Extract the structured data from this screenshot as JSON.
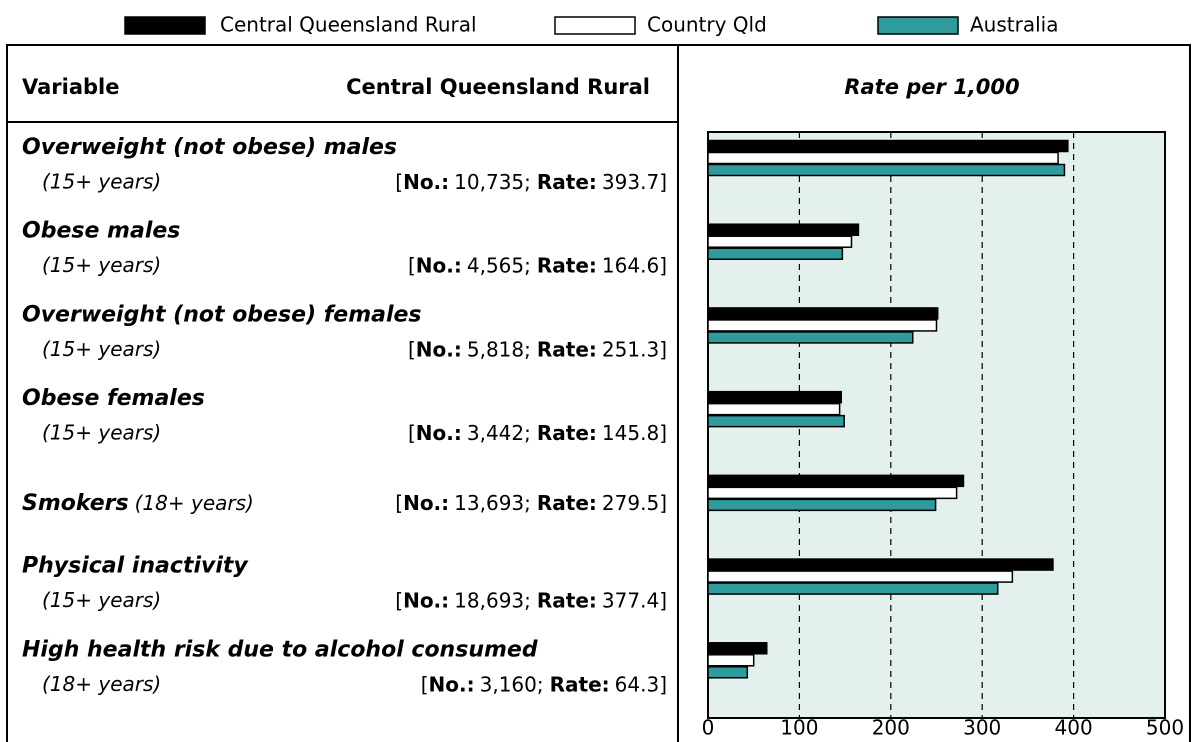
{
  "chart_data": {
    "type": "bar",
    "orientation": "horizontal",
    "table_header": "Variable",
    "axis_title": "Rate per 1,000",
    "categories": [
      "Overweight (not obese) males",
      "Obese males",
      "Overweight (not obese) females",
      "Obese females",
      "Smokers",
      "Physical inactivity",
      "High health risk due to alcohol consumed"
    ],
    "category_notes": [
      "(15+ years)",
      "(15+ years)",
      "(15+ years)",
      "(15+ years)",
      "(18+ years)",
      "(15+ years)",
      "(18+ years)"
    ],
    "number_label": "No.:",
    "rate_label": "Rate:",
    "punctuation": {
      "open": "[",
      "separator": ";",
      "close": "]"
    },
    "counts": [
      "10,735",
      "4,565",
      "5,818",
      "3,442",
      "13,693",
      "18,693",
      "3,160"
    ],
    "series": [
      {
        "name": "Central Queensland Rural",
        "color": "#000000",
        "values": [
          393.7,
          164.6,
          251.3,
          145.8,
          279.5,
          377.4,
          64.3
        ]
      },
      {
        "name": "Country Qld",
        "color": "#ffffff",
        "values": [
          383,
          157,
          250,
          144,
          272,
          333,
          50
        ]
      },
      {
        "name": "Australia",
        "color": "#2e9c9c",
        "values": [
          390,
          147,
          224,
          149,
          249,
          317,
          43
        ]
      }
    ],
    "xlim": [
      0,
      500
    ],
    "xticks": [
      0,
      100,
      200,
      300,
      400,
      500
    ],
    "grid": true,
    "grid_style": "dashed",
    "plot_background": "#e4f0ee"
  }
}
